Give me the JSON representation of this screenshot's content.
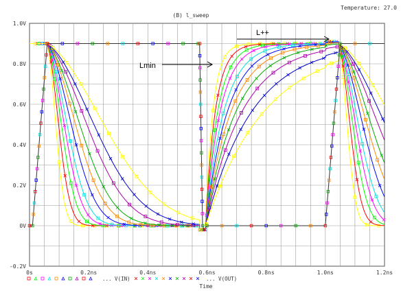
{
  "header": {
    "temperature": "Temperature: 27.0",
    "title": "(B) l_sweep"
  },
  "annotations": {
    "lmin": "Lmin",
    "lpp": "L++"
  },
  "legend": {
    "vin": "... V(IN)",
    "vout": "... V(OUT)"
  },
  "chart_data": {
    "type": "line",
    "title": "(B) l_sweep",
    "xlabel": "Time",
    "ylabel": "",
    "xlim": [
      0,
      1.2
    ],
    "ylim": [
      -0.2,
      1.0
    ],
    "x_unit": "ns",
    "grid": true,
    "xticks": [
      "0s",
      "0.2ns",
      "0.4ns",
      "0.6ns",
      "0.8ns",
      "1.0ns",
      "1.2ns"
    ],
    "yticks": [
      "1.0V",
      "0.8V",
      "0.6V",
      "0.4V",
      "0.2V",
      "0V",
      "-0.2V"
    ],
    "vin_waveform": {
      "name": "V(IN)",
      "x": [
        0.0,
        0.01,
        0.06,
        0.57,
        0.575,
        0.585,
        0.59,
        0.6,
        1.0,
        1.05,
        1.2
      ],
      "y": [
        0.0,
        0.0,
        0.9,
        0.9,
        0.9,
        0.0,
        -0.02,
        0.0,
        0.0,
        0.9,
        0.9
      ]
    },
    "vout_series": [
      {
        "color": "#ffff00",
        "fall_time": 0.06,
        "rise_time": 0.06
      },
      {
        "color": "#ff0000",
        "fall_time": 0.08,
        "rise_time": 0.08
      },
      {
        "color": "#00ff00",
        "fall_time": 0.1,
        "rise_time": 0.1
      },
      {
        "color": "#ff00ff",
        "fall_time": 0.12,
        "rise_time": 0.12
      },
      {
        "color": "#00e0e0",
        "fall_time": 0.14,
        "rise_time": 0.15
      },
      {
        "color": "#0000ff",
        "fall_time": 0.17,
        "rise_time": 0.18
      },
      {
        "color": "#ff8800",
        "fall_time": 0.2,
        "rise_time": 0.21
      },
      {
        "color": "#00aa00",
        "fall_time": 0.23,
        "rise_time": 0.25
      },
      {
        "color": "#aa00aa",
        "fall_time": 0.28,
        "rise_time": 0.3
      },
      {
        "color": "#0000cc",
        "fall_time": 0.33,
        "rise_time": 0.38
      },
      {
        "color": "#ffff00",
        "fall_time": 0.4,
        "rise_time": 0.48
      }
    ],
    "legend_markers": [
      "#ff0000",
      "#00ff00",
      "#ff00ff",
      "#00e0e0",
      "#ff8800",
      "#0000ff",
      "#00aa00",
      "#aa00aa",
      "#ff0000",
      "#0000ff"
    ]
  }
}
